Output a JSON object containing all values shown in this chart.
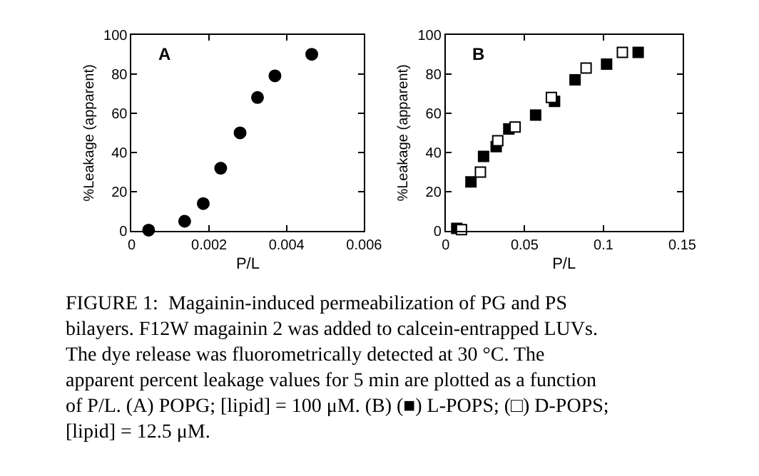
{
  "chart_data": [
    {
      "type": "scatter",
      "title": "A",
      "xlabel": "P/L",
      "ylabel": "%Leakage (apparent)",
      "marker": "circle",
      "xlim": [
        0,
        0.006
      ],
      "xticks": [
        0,
        0.002,
        0.004,
        0.006
      ],
      "ylim": [
        0,
        100
      ],
      "yticks": [
        0,
        20,
        40,
        60,
        80,
        100
      ],
      "series": [
        {
          "color": "#000000",
          "x": [
            0.00044,
            0.00137,
            0.00185,
            0.0023,
            0.0028,
            0.00325,
            0.0037,
            0.00465
          ],
          "values": [
            0.5,
            5,
            14,
            32,
            50,
            68,
            79,
            90
          ]
        }
      ],
      "annotations": [
        "FIGURE 1:  Magainin-induced permeabilization of PG and PS",
        "bilayers. F12W magainin 2 was added to calcein-entrapped LUVs.",
        "The dye release was fluorometrically detected at 30 °C. The",
        "apparent percent leakage values for 5 min are plotted as a function",
        "of P/L. (A) POPG; [lipid] = 100 μM. (B) (■) L-POPS; (□) D-POPS;",
        "[lipid] = 12.5 μM."
      ]
    },
    {
      "type": "scatter",
      "title": "B",
      "xlabel": "P/L",
      "ylabel": "%Leakage (apparent)",
      "marker": "square",
      "xlim": [
        0,
        0.15
      ],
      "xticks": [
        0,
        0.05,
        0.1,
        0.15
      ],
      "ylim": [
        0,
        100
      ],
      "yticks": [
        0,
        20,
        40,
        60,
        80,
        100
      ],
      "series": [
        {
          "color": "#000000",
          "x": [
            0.007,
            0.016,
            0.024,
            0.032,
            0.04,
            0.057,
            0.069,
            0.082,
            0.102,
            0.122
          ],
          "values": [
            1.4,
            25,
            38,
            43,
            52,
            59,
            66,
            77,
            85,
            91
          ]
        },
        {
          "color": "#ffffff",
          "x": [
            0.01,
            0.022,
            0.033,
            0.044,
            0.067,
            0.089,
            0.112
          ],
          "values": [
            0.7,
            30,
            46,
            53,
            68,
            83,
            91
          ]
        }
      ]
    }
  ]
}
